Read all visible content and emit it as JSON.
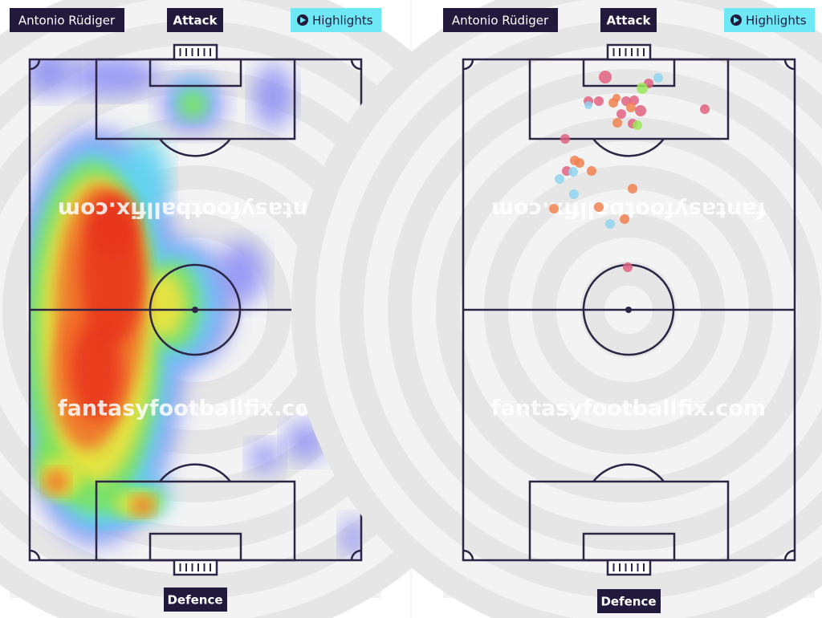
{
  "panels": [
    {
      "player": "Antonio Rüdiger",
      "top_label": "Attack",
      "button": "Highlights",
      "bottom_label": "Defence",
      "watermark": "fantasyfootballfix.com"
    },
    {
      "player": "Antonio Rüdiger",
      "top_label": "Attack",
      "button": "Highlights",
      "bottom_label": "Defence",
      "watermark": "fantasyfootballfix.com"
    }
  ]
}
